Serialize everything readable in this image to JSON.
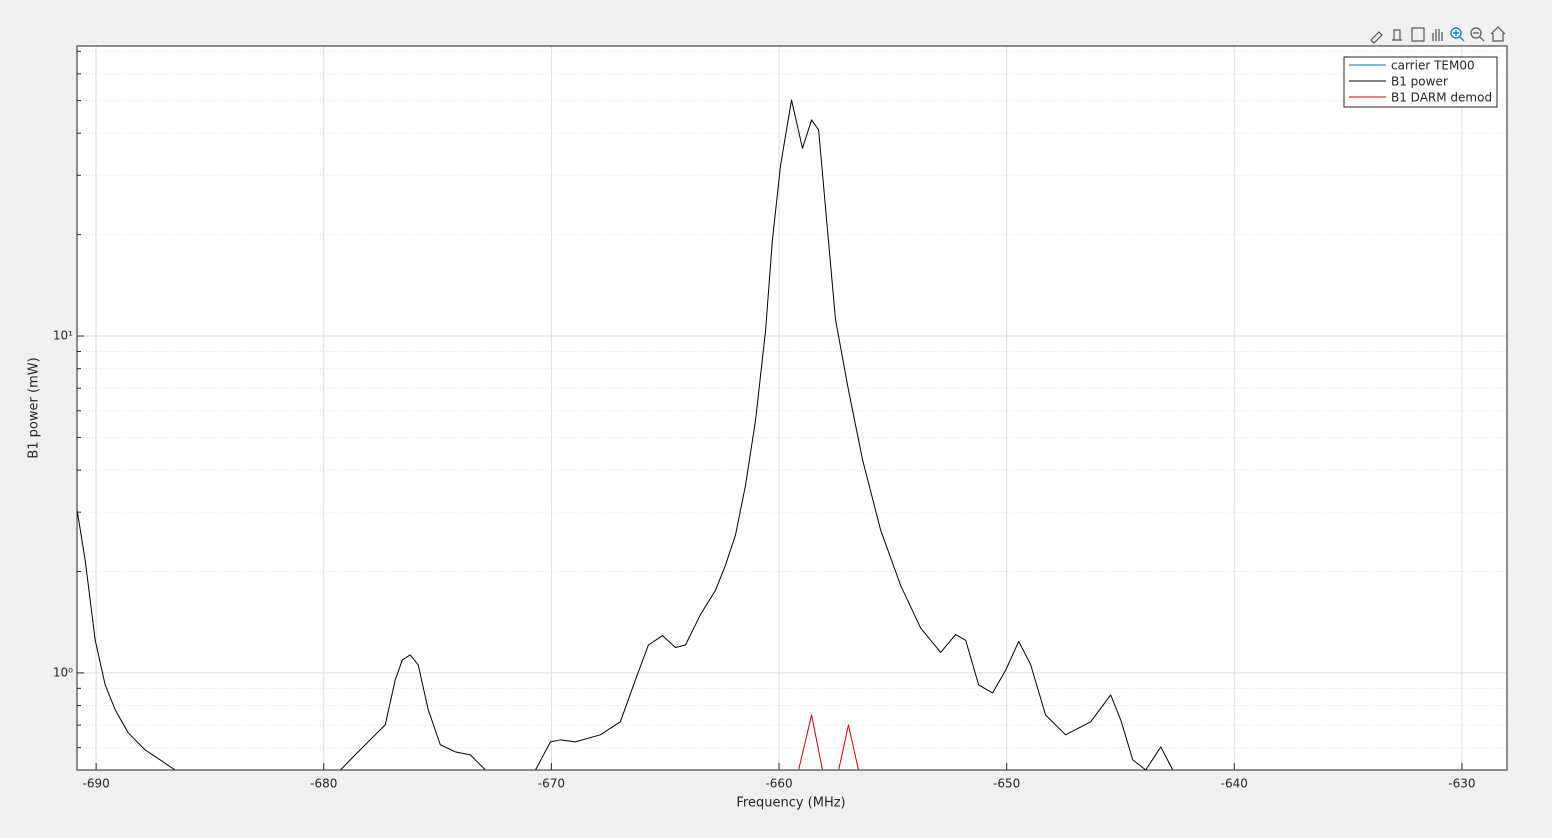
{
  "chart_data": {
    "type": "line",
    "xlabel": "Frequency (MHz)",
    "ylabel": "B1 power (mW)",
    "xlim": [
      -690.84,
      -628.02
    ],
    "ylim": [
      0.515,
      72.6
    ],
    "yscale": "log",
    "xticks": [
      -690,
      -680,
      -670,
      -660,
      -650,
      -640,
      -630
    ],
    "yticks": [
      {
        "value": 1,
        "label": "10⁰"
      },
      {
        "value": 10,
        "label": "10¹"
      }
    ],
    "yminorticks": [
      0.6,
      0.7,
      0.8,
      0.9,
      2,
      3,
      4,
      5,
      6,
      7,
      8,
      9,
      20,
      30,
      40,
      50,
      60,
      70
    ],
    "grid": true,
    "legend": "upper right",
    "series": [
      {
        "name": "carrier TEM00",
        "color": "#0072bd",
        "x": [],
        "values": []
      },
      {
        "name": "B1 power",
        "color": "#000000",
        "x": [
          -690.84,
          -690.48,
          -690.04,
          -689.6,
          -689.16,
          -688.59,
          -687.85,
          -687.19,
          -686.53,
          null,
          -679.27,
          -678.62,
          -677.96,
          -677.3,
          -676.86,
          -676.55,
          -676.2,
          -675.85,
          -675.41,
          -674.88,
          -674.22,
          -673.56,
          -672.9,
          null,
          -670.7,
          -670.04,
          -669.6,
          -668.95,
          -667.85,
          -666.97,
          -666.31,
          -665.74,
          -665.12,
          -664.55,
          -664.11,
          -663.45,
          -662.79,
          -662.35,
          -661.91,
          -661.47,
          -661.03,
          -660.59,
          -660.29,
          -659.93,
          -659.45,
          -658.97,
          -658.57,
          -658.26,
          -657.91,
          -657.52,
          -656.95,
          -656.33,
          -655.54,
          -654.66,
          -653.78,
          -652.9,
          -652.24,
          -651.8,
          -651.23,
          -650.62,
          -650.04,
          -649.47,
          -648.95,
          -648.29,
          -647.41,
          -646.31,
          -645.43,
          -644.99,
          -644.46,
          -643.89,
          -643.23,
          -642.7
        ],
        "values": [
          3.05,
          2.16,
          1.25,
          0.92,
          0.777,
          0.664,
          0.591,
          0.552,
          0.515,
          null,
          0.515,
          0.571,
          0.633,
          0.701,
          0.953,
          1.093,
          1.131,
          1.056,
          0.777,
          0.612,
          0.583,
          0.571,
          0.515,
          null,
          0.515,
          0.624,
          0.633,
          0.624,
          0.655,
          0.716,
          0.953,
          1.21,
          1.29,
          1.19,
          1.21,
          1.49,
          1.76,
          2.09,
          2.57,
          3.61,
          5.63,
          10.4,
          19.3,
          32.2,
          50.2,
          36.1,
          43.8,
          40.9,
          22.1,
          11.2,
          6.92,
          4.29,
          2.66,
          1.82,
          1.36,
          1.15,
          1.3,
          1.25,
          0.921,
          0.872,
          1.02,
          1.24,
          1.06,
          0.75,
          0.655,
          0.716,
          0.86,
          0.726,
          0.552,
          0.515,
          0.603,
          0.515
        ]
      },
      {
        "name": "B1 DARM demod",
        "color": "#d00000",
        "x": [
          -659.14,
          -658.57,
          -658.09,
          null,
          -657.38,
          -656.95,
          -656.51
        ],
        "values": [
          0.515,
          0.75,
          0.515,
          null,
          0.515,
          0.701,
          0.515
        ]
      }
    ]
  }
}
